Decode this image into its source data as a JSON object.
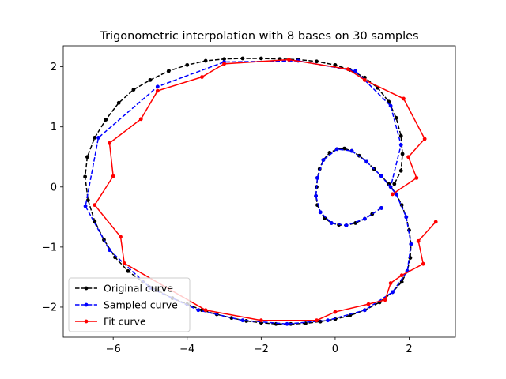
{
  "chart_data": {
    "type": "line",
    "title": "Trigonometric interpolation with 8 bases on 30 samples",
    "xlabel": "",
    "ylabel": "",
    "xlim": [
      -7.35,
      3.25
    ],
    "ylim": [
      -2.5,
      2.35
    ],
    "xticks": [
      -6,
      -4,
      -2,
      0,
      2
    ],
    "yticks": [
      -2,
      -1,
      0,
      1,
      2
    ],
    "tick_labels_x": [
      "−6",
      "−4",
      "−2",
      "0",
      "2"
    ],
    "tick_labels_y": [
      "−2",
      "−1",
      "0",
      "1",
      "2"
    ],
    "grid": false,
    "legend_position": "lower-left",
    "series": [
      {
        "name": "Original curve",
        "color": "#000000",
        "style": "dashed",
        "marker": "circle",
        "points": [
          [
            1.25,
            -0.35
          ],
          [
            1.0,
            -0.45
          ],
          [
            0.8,
            -0.53
          ],
          [
            0.55,
            -0.6
          ],
          [
            0.3,
            -0.64
          ],
          [
            0.1,
            -0.63
          ],
          [
            -0.1,
            -0.6
          ],
          [
            -0.28,
            -0.52
          ],
          [
            -0.4,
            -0.42
          ],
          [
            -0.48,
            -0.3
          ],
          [
            -0.52,
            -0.15
          ],
          [
            -0.5,
            0.0
          ],
          [
            -0.48,
            0.15
          ],
          [
            -0.42,
            0.3
          ],
          [
            -0.32,
            0.45
          ],
          [
            -0.15,
            0.57
          ],
          [
            0.05,
            0.63
          ],
          [
            0.25,
            0.64
          ],
          [
            0.45,
            0.6
          ],
          [
            0.65,
            0.52
          ],
          [
            0.85,
            0.42
          ],
          [
            1.05,
            0.3
          ],
          [
            1.25,
            0.18
          ],
          [
            1.45,
            0.05
          ],
          [
            1.65,
            -0.12
          ],
          [
            1.8,
            -0.3
          ],
          [
            1.92,
            -0.5
          ],
          [
            2.0,
            -0.72
          ],
          [
            2.05,
            -0.95
          ],
          [
            2.03,
            -1.18
          ],
          [
            1.95,
            -1.4
          ],
          [
            1.8,
            -1.58
          ],
          [
            1.55,
            -1.75
          ],
          [
            1.2,
            -1.92
          ],
          [
            0.8,
            -2.05
          ],
          [
            0.4,
            -2.14
          ],
          [
            0.0,
            -2.2
          ],
          [
            -0.4,
            -2.24
          ],
          [
            -0.8,
            -2.27
          ],
          [
            -1.2,
            -2.28
          ],
          [
            -1.6,
            -2.28
          ],
          [
            -2.0,
            -2.26
          ],
          [
            -2.4,
            -2.23
          ],
          [
            -2.8,
            -2.18
          ],
          [
            -3.2,
            -2.12
          ],
          [
            -3.6,
            -2.05
          ],
          [
            -4.0,
            -1.95
          ],
          [
            -4.4,
            -1.85
          ],
          [
            -4.8,
            -1.72
          ],
          [
            -5.2,
            -1.58
          ],
          [
            -5.6,
            -1.4
          ],
          [
            -5.95,
            -1.17
          ],
          [
            -6.25,
            -0.88
          ],
          [
            -6.5,
            -0.57
          ],
          [
            -6.68,
            -0.22
          ],
          [
            -6.76,
            0.17
          ],
          [
            -6.7,
            0.5
          ],
          [
            -6.5,
            0.82
          ],
          [
            -6.2,
            1.12
          ],
          [
            -5.85,
            1.4
          ],
          [
            -5.45,
            1.62
          ],
          [
            -5.0,
            1.78
          ],
          [
            -4.5,
            1.93
          ],
          [
            -4.0,
            2.03
          ],
          [
            -3.5,
            2.1
          ],
          [
            -3.0,
            2.13
          ],
          [
            -2.5,
            2.14
          ],
          [
            -2.0,
            2.14
          ],
          [
            -1.5,
            2.13
          ],
          [
            -1.0,
            2.12
          ],
          [
            -0.5,
            2.09
          ],
          [
            0.0,
            2.03
          ],
          [
            0.4,
            1.95
          ],
          [
            0.8,
            1.82
          ],
          [
            1.15,
            1.65
          ],
          [
            1.45,
            1.42
          ],
          [
            1.65,
            1.15
          ],
          [
            1.78,
            0.85
          ],
          [
            1.82,
            0.55
          ],
          [
            1.78,
            0.27
          ],
          [
            1.6,
            0.05
          ]
        ]
      },
      {
        "name": "Sampled curve",
        "color": "#0000ff",
        "style": "dashed",
        "marker": "circle",
        "points": [
          [
            1.25,
            -0.35
          ],
          [
            0.8,
            -0.53
          ],
          [
            0.3,
            -0.64
          ],
          [
            -0.1,
            -0.6
          ],
          [
            -0.4,
            -0.42
          ],
          [
            -0.52,
            -0.15
          ],
          [
            -0.48,
            0.15
          ],
          [
            -0.32,
            0.45
          ],
          [
            0.05,
            0.63
          ],
          [
            0.45,
            0.6
          ],
          [
            0.85,
            0.42
          ],
          [
            1.25,
            0.18
          ],
          [
            1.65,
            -0.12
          ],
          [
            1.92,
            -0.5
          ],
          [
            2.05,
            -0.95
          ],
          [
            1.95,
            -1.4
          ],
          [
            1.55,
            -1.75
          ],
          [
            0.8,
            -2.05
          ],
          [
            -0.2,
            -2.22
          ],
          [
            -1.3,
            -2.28
          ],
          [
            -2.5,
            -2.22
          ],
          [
            -3.7,
            -2.05
          ],
          [
            -5.0,
            -1.68
          ],
          [
            -6.1,
            -1.05
          ],
          [
            -6.75,
            -0.32
          ],
          [
            -6.4,
            0.82
          ],
          [
            -4.8,
            1.67
          ],
          [
            -3.0,
            2.08
          ],
          [
            -1.0,
            2.1
          ],
          [
            0.55,
            1.93
          ],
          [
            1.5,
            1.35
          ],
          [
            1.78,
            0.7
          ],
          [
            1.5,
            0.0
          ]
        ]
      },
      {
        "name": "Fit curve",
        "color": "#ff0000",
        "style": "solid",
        "marker": "circle",
        "points": [
          [
            1.55,
            -0.12
          ],
          [
            2.2,
            0.15
          ],
          [
            1.98,
            0.5
          ],
          [
            2.42,
            0.8
          ],
          [
            1.85,
            1.47
          ],
          [
            0.8,
            1.78
          ],
          [
            0.35,
            1.96
          ],
          [
            -1.25,
            2.12
          ],
          [
            -3.0,
            2.05
          ],
          [
            -3.6,
            1.83
          ],
          [
            -4.8,
            1.6
          ],
          [
            -5.25,
            1.13
          ],
          [
            -6.1,
            0.73
          ],
          [
            -6.0,
            0.18
          ],
          [
            -6.5,
            -0.3
          ],
          [
            -5.8,
            -0.83
          ],
          [
            -5.7,
            -1.27
          ],
          [
            -3.5,
            -2.05
          ],
          [
            -2.0,
            -2.22
          ],
          [
            -0.5,
            -2.22
          ],
          [
            0.0,
            -2.08
          ],
          [
            0.9,
            -1.95
          ],
          [
            1.35,
            -1.88
          ],
          [
            1.5,
            -1.6
          ],
          [
            1.8,
            -1.47
          ],
          [
            2.38,
            -1.28
          ],
          [
            2.25,
            -0.9
          ],
          [
            2.72,
            -0.58
          ]
        ]
      }
    ]
  }
}
